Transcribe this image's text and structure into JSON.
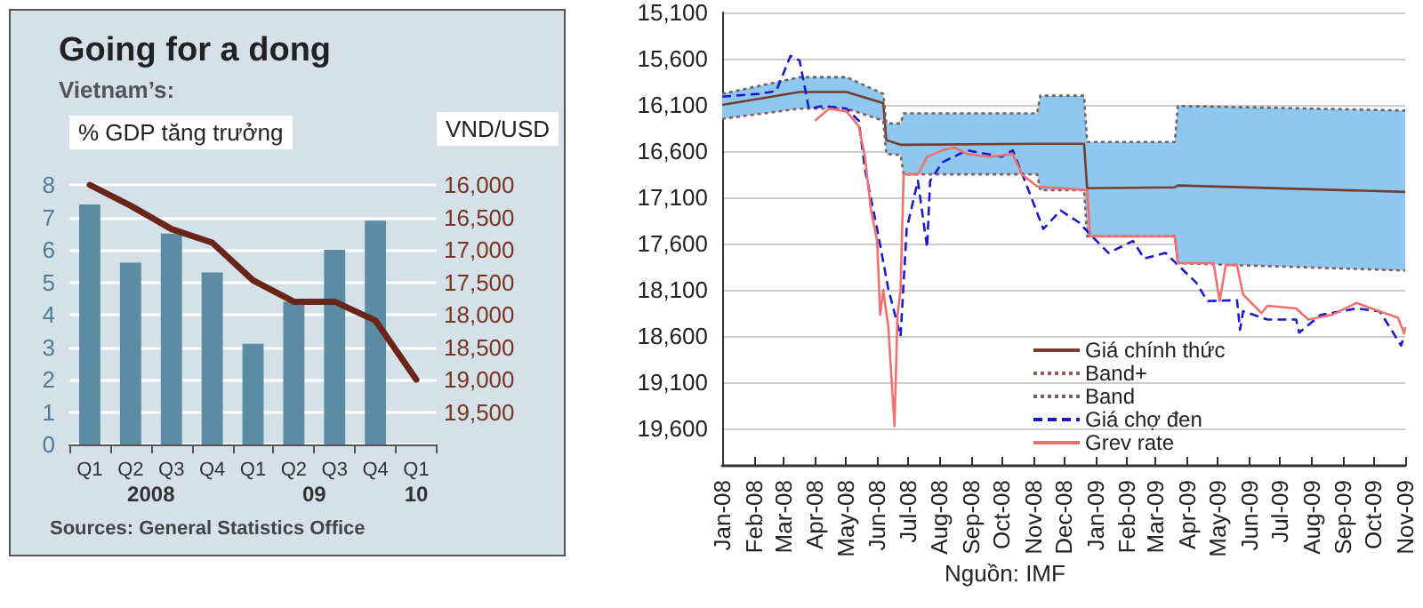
{
  "chart_data": [
    {
      "type": "bar",
      "title": "Going for a dong",
      "subtitle": "Vietnam’s:",
      "ylabel": "% GDP tăng trưởng",
      "y2label": "VND/USD",
      "categories": [
        "Q1",
        "Q2",
        "Q3",
        "Q4",
        "Q1",
        "Q2",
        "Q3",
        "Q4",
        "Q1"
      ],
      "series": [
        {
          "type": "bar",
          "color": "#5b8ca3",
          "values": [
            7.4,
            5.6,
            6.5,
            5.3,
            3.1,
            4.4,
            6.0,
            6.9,
            null
          ]
        },
        {
          "type": "line",
          "axis": "y2",
          "color": "#6b2418",
          "values": [
            16000,
            16320,
            16680,
            16890,
            17470,
            17800,
            17800,
            18090,
            19000
          ]
        }
      ],
      "ylim": [
        0,
        8
      ],
      "yticks": [
        0,
        1,
        2,
        3,
        4,
        5,
        6,
        7,
        8
      ],
      "y2lim": [
        20000,
        16000
      ],
      "y2ticks": [
        {
          "value": 16000,
          "label": "16,000"
        },
        {
          "value": 16500,
          "label": "16,500"
        },
        {
          "value": 17000,
          "label": "17,000"
        },
        {
          "value": 17500,
          "label": "17,500"
        },
        {
          "value": 18000,
          "label": "18,000"
        },
        {
          "value": 18500,
          "label": "18,500"
        },
        {
          "value": 19000,
          "label": "19,000"
        },
        {
          "value": 19500,
          "label": "19,500"
        }
      ],
      "grid": "y",
      "annotations": [
        "2008",
        "09",
        "10",
        "Sources: General Statistics Office"
      ]
    },
    {
      "type": "line",
      "legend": "bottom",
      "grid": "y",
      "series": [
        {
          "name": "Giá chính thức",
          "color": "#7a3b2e",
          "line_style": "solid",
          "x": [
            "2008-01-01",
            "2008-03-17",
            "2008-05-02",
            "2008-06-07",
            "2008-06-10",
            "2008-06-24",
            "2008-06-27",
            "2008-11-05",
            "2008-11-08",
            "2008-12-21",
            "2008-12-24",
            "2009-03-20",
            "2009-03-23",
            "2009-11-01"
          ],
          "values": [
            16100,
            15960,
            15960,
            16080,
            16480,
            16530,
            16530,
            16520,
            16520,
            16520,
            17000,
            16990,
            16970,
            17040
          ],
          "lower": [
            15980,
            15800,
            15800,
            15980,
            16300,
            16300,
            16190,
            16190,
            16000,
            16000,
            16500,
            16500,
            16110,
            16160
          ],
          "upper": [
            16250,
            16140,
            16140,
            16270,
            16630,
            16640,
            16850,
            16850,
            17020,
            17020,
            17520,
            17520,
            17810,
            17890
          ]
        },
        {
          "name": "Band+",
          "color": "#8b5a5a",
          "line_style": "dotted",
          "x": [
            "2008-01-01",
            "2008-03-17",
            "2008-05-02",
            "2008-06-07",
            "2008-06-10",
            "2008-06-24",
            "2008-06-27",
            "2008-11-05",
            "2008-11-08",
            "2008-12-21",
            "2008-12-24",
            "2009-03-20",
            "2009-03-23",
            "2009-11-01"
          ],
          "values": [
            16250,
            16140,
            16140,
            16270,
            16630,
            16640,
            16850,
            16850,
            17020,
            17020,
            17520,
            17520,
            17810,
            17890
          ]
        },
        {
          "name": "Band",
          "color": "#6e6262",
          "line_style": "dotted",
          "x": [
            "2008-01-01",
            "2008-03-17",
            "2008-05-02",
            "2008-06-07",
            "2008-06-10",
            "2008-06-24",
            "2008-06-27",
            "2008-11-05",
            "2008-11-08",
            "2008-12-21",
            "2008-12-24",
            "2009-03-20",
            "2009-03-23",
            "2009-11-01"
          ],
          "values": [
            15980,
            15800,
            15800,
            15980,
            16300,
            16300,
            16190,
            16190,
            16000,
            16000,
            16500,
            16500,
            16110,
            16160
          ]
        },
        {
          "name": "Giá chợ đen",
          "color": "#1a1acc",
          "line_style": "dashed",
          "x": [
            "2008-01-01",
            "2008-02-06",
            "2008-02-23",
            "2008-03-08",
            "2008-03-17",
            "2008-03-26",
            "2008-04-09",
            "2008-05-02",
            "2008-05-14",
            "2008-05-20",
            "2008-06-01",
            "2008-06-12",
            "2008-06-24",
            "2008-06-30",
            "2008-07-11",
            "2008-07-20",
            "2008-07-23",
            "2008-08-04",
            "2008-08-28",
            "2008-10-01",
            "2008-10-12",
            "2008-10-24",
            "2008-11-11",
            "2008-11-28",
            "2008-12-16",
            "2008-12-27",
            "2009-01-14",
            "2009-02-07",
            "2009-02-18",
            "2009-03-11",
            "2009-03-23",
            "2009-04-10",
            "2009-04-21",
            "2009-05-20",
            "2009-05-23",
            "2009-05-26",
            "2009-06-19",
            "2009-07-17",
            "2009-07-20",
            "2009-08-10",
            "2009-09-14",
            "2009-10-07",
            "2009-10-28",
            "2009-10-31"
          ],
          "values": [
            16010,
            15980,
            15950,
            15570,
            15620,
            16140,
            16110,
            16140,
            16270,
            16790,
            17440,
            18090,
            18600,
            17440,
            16920,
            17640,
            16920,
            16720,
            16590,
            16660,
            16590,
            16920,
            17440,
            17240,
            17370,
            17500,
            17700,
            17570,
            17760,
            17700,
            17830,
            18020,
            18220,
            18210,
            18530,
            18330,
            18420,
            18420,
            18560,
            18370,
            18300,
            18330,
            18700,
            18600
          ]
        },
        {
          "name": "Grev rate",
          "color": "#f07070",
          "line_style": "solid",
          "x": [
            "2008-04-01",
            "2008-04-15",
            "2008-05-02",
            "2008-05-14",
            "2008-05-20",
            "2008-05-26",
            "2008-06-01",
            "2008-06-04",
            "2008-06-07",
            "2008-06-12",
            "2008-06-18",
            "2008-06-21",
            "2008-06-24",
            "2008-06-27",
            "2008-07-11",
            "2008-07-20",
            "2008-08-04",
            "2008-08-16",
            "2008-08-28",
            "2008-09-20",
            "2008-10-12",
            "2008-10-21",
            "2008-11-05",
            "2008-12-24",
            "2008-12-27",
            "2009-03-20",
            "2009-03-23",
            "2009-04-27",
            "2009-05-03",
            "2009-05-09",
            "2009-05-20",
            "2009-05-26",
            "2009-06-13",
            "2009-06-19",
            "2009-07-17",
            "2009-07-29",
            "2009-08-21",
            "2009-09-14",
            "2009-10-07",
            "2009-10-25",
            "2009-10-31",
            "2009-11-01"
          ],
          "values": [
            16270,
            16140,
            16170,
            16330,
            16660,
            17240,
            17570,
            18370,
            18100,
            18500,
            19570,
            18370,
            18100,
            16850,
            16850,
            16660,
            16590,
            16560,
            16630,
            16660,
            16630,
            16850,
            16980,
            17020,
            17520,
            17520,
            17810,
            17810,
            18220,
            17830,
            17830,
            18150,
            18350,
            18270,
            18300,
            18420,
            18370,
            18240,
            18330,
            18400,
            18570,
            18500
          ]
        }
      ],
      "xlim": [
        "2008-01-01",
        "2009-11-01"
      ],
      "xticks": [
        {
          "value": "2008-01-01",
          "label": "Jan-08"
        },
        {
          "value": "2008-02-01",
          "label": "Feb-08"
        },
        {
          "value": "2008-03-01",
          "label": "Mar-08"
        },
        {
          "value": "2008-04-01",
          "label": "Apr-08"
        },
        {
          "value": "2008-05-01",
          "label": "May-08"
        },
        {
          "value": "2008-06-01",
          "label": "Jun-08"
        },
        {
          "value": "2008-07-01",
          "label": "Jul-08"
        },
        {
          "value": "2008-08-01",
          "label": "Aug-08"
        },
        {
          "value": "2008-09-01",
          "label": "Sep-08"
        },
        {
          "value": "2008-10-01",
          "label": "Oct-08"
        },
        {
          "value": "2008-11-01",
          "label": "Nov-08"
        },
        {
          "value": "2008-12-01",
          "label": "Dec-08"
        },
        {
          "value": "2009-01-01",
          "label": "Jan-09"
        },
        {
          "value": "2009-02-01",
          "label": "Feb-09"
        },
        {
          "value": "2009-03-01",
          "label": "Mar-09"
        },
        {
          "value": "2009-04-01",
          "label": "Apr-09"
        },
        {
          "value": "2009-05-01",
          "label": "May-09"
        },
        {
          "value": "2009-06-01",
          "label": "Jun-09"
        },
        {
          "value": "2009-07-01",
          "label": "Jul-09"
        },
        {
          "value": "2009-08-01",
          "label": "Aug-09"
        },
        {
          "value": "2009-09-01",
          "label": "Sep-09"
        },
        {
          "value": "2009-10-01",
          "label": "Oct-09"
        },
        {
          "value": "2009-11-01",
          "label": "Nov-09"
        }
      ],
      "ylim": [
        20000,
        15100
      ],
      "yticks": [
        {
          "value": 15100,
          "label": "15,100"
        },
        {
          "value": 15600,
          "label": "15,600"
        },
        {
          "value": 16100,
          "label": "16,100"
        },
        {
          "value": 16600,
          "label": "16,600"
        },
        {
          "value": 17100,
          "label": "17,100"
        },
        {
          "value": 17600,
          "label": "17,600"
        },
        {
          "value": 18100,
          "label": "18,100"
        },
        {
          "value": 18600,
          "label": "18,600"
        },
        {
          "value": 19100,
          "label": "19,100"
        },
        {
          "value": 19600,
          "label": "19,600"
        }
      ],
      "annotations": [
        "Nguồn: IMF"
      ]
    }
  ]
}
